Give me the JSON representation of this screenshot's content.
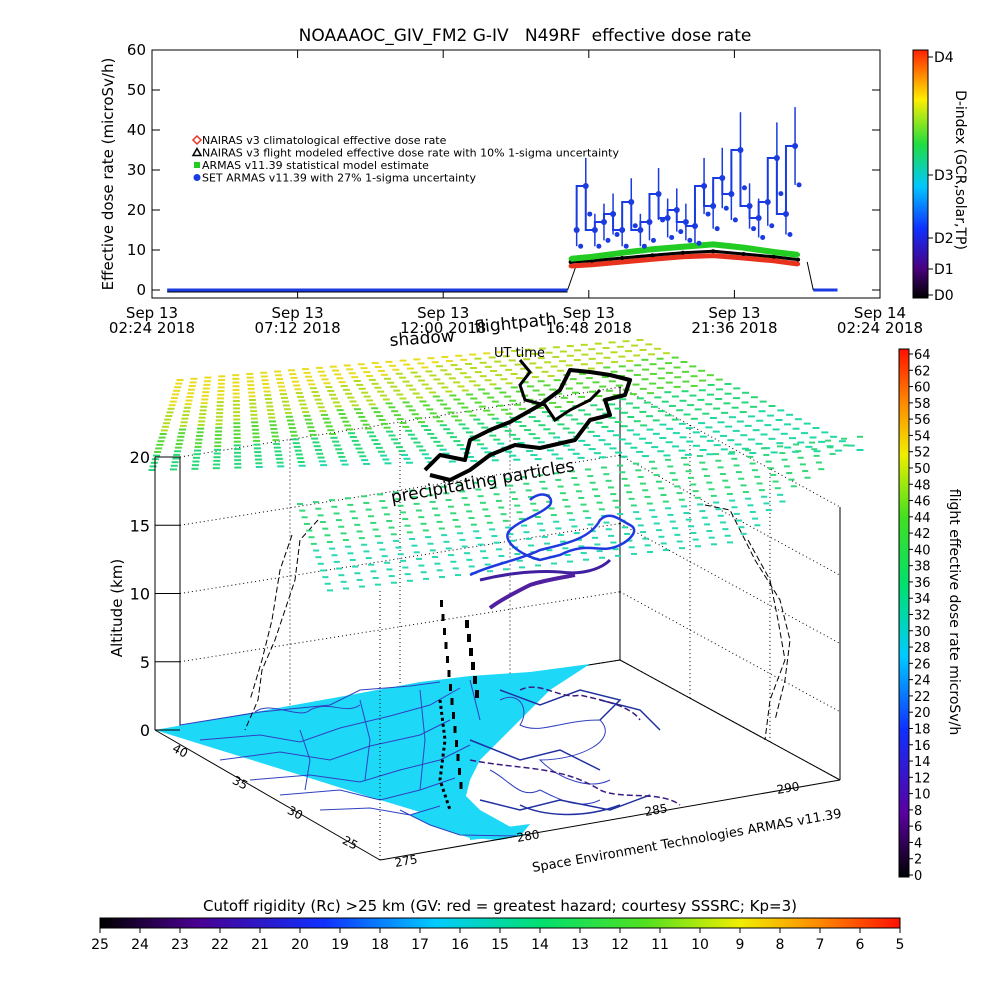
{
  "title": "NOAAAOC_GIV_FM2 G-IV   N49RF  effective dose rate",
  "chart_data": [
    {
      "type": "scatter",
      "name": "time-series",
      "ylabel": "Effective dose rate  (microSv/h)",
      "ylim": [
        0,
        60
      ],
      "y_ticks": [
        "0",
        "10",
        "20",
        "30",
        "40",
        "50",
        "60"
      ],
      "x_ticks": [
        {
          "l1": "Sep 13",
          "l2": "02:24 2018"
        },
        {
          "l1": "Sep 13",
          "l2": "07:12 2018"
        },
        {
          "l1": "Sep 13",
          "l2": "12:00 2018"
        },
        {
          "l1": "Sep 13",
          "l2": "16:48 2018"
        },
        {
          "l1": "Sep 13",
          "l2": "21:36 2018"
        },
        {
          "l1": "Sep 14",
          "l2": "02:24 2018"
        }
      ],
      "x_range_hours": [
        0,
        24
      ],
      "legend": [
        {
          "label": "NAIRAS v3 climatological effective dose rate",
          "color": "#e8321e",
          "marker": "diamond"
        },
        {
          "label": "NAIRAS v3 flight modeled effective dose rate with 10% 1-sigma uncertainty",
          "color": "#000000",
          "marker": "triangle"
        },
        {
          "label": "ARMAS v11.39 statistical model estimate",
          "color": "#22cc22",
          "marker": "star"
        },
        {
          "label": "SET ARMAS v11.39 with 27% 1-sigma uncertainty",
          "color": "#1a3be0",
          "marker": "circle"
        }
      ],
      "flight_hours": [
        13.7,
        21.8
      ],
      "series": [
        {
          "name": "NAIRAS v3 climatological effective dose rate",
          "color": "#e8321e",
          "x": [
            13.8,
            14.5,
            15.5,
            16.5,
            17.5,
            18.5,
            19.5,
            20.5,
            21.3
          ],
          "y": [
            6.0,
            6.3,
            7.0,
            7.7,
            8.3,
            8.6,
            8.0,
            7.3,
            6.5
          ]
        },
        {
          "name": "NAIRAS v3 flight modeled effective dose rate with 10% 1-sigma uncertainty",
          "color": "#000000",
          "x": [
            13.8,
            14.5,
            15.5,
            16.5,
            17.5,
            18.5,
            19.5,
            20.5,
            21.3
          ],
          "y": [
            7.0,
            7.3,
            8.0,
            8.7,
            9.3,
            9.7,
            9.0,
            8.3,
            7.6
          ]
        },
        {
          "name": "ARMAS v11.39 statistical model estimate",
          "color": "#22cc22",
          "x": [
            13.8,
            14.5,
            15.5,
            16.5,
            17.5,
            18.5,
            19.5,
            20.5,
            21.3
          ],
          "y": [
            7.8,
            8.3,
            9.3,
            10.2,
            10.8,
            11.4,
            10.6,
            9.5,
            8.8
          ]
        },
        {
          "name": "SET ARMAS v11.39 with 27% 1-sigma uncertainty",
          "color": "#1a3be0",
          "x": [
            14.0,
            14.3,
            14.6,
            14.9,
            15.2,
            15.5,
            15.8,
            16.1,
            16.4,
            16.7,
            17.0,
            17.3,
            17.6,
            17.9,
            18.2,
            18.5,
            18.8,
            19.1,
            19.4,
            19.7,
            20.0,
            20.3,
            20.6,
            20.9,
            21.2
          ],
          "y": [
            15,
            26,
            15,
            17,
            19,
            15,
            22,
            15,
            17,
            24,
            18,
            20,
            17,
            16,
            26,
            21,
            28,
            24,
            35,
            21,
            18,
            22,
            33,
            19,
            36
          ]
        }
      ],
      "dindex_colorbar": {
        "label": "D-index (GCR,solar,TP)",
        "ticks": [
          "D0",
          "D1",
          "D2",
          "D3",
          "D4"
        ]
      }
    },
    {
      "type": "3d-scatter",
      "name": "3d-flightpath",
      "zlabel": "Altitude (km)",
      "z_ticks": [
        "0",
        "5",
        "10",
        "15",
        "20"
      ],
      "lat_ticks": [
        "40",
        "35",
        "30",
        "25"
      ],
      "lon_ticks": [
        "275",
        "280",
        "285",
        "290"
      ],
      "labels": {
        "flightpath": "flightpath",
        "shadow": "shadow",
        "ut_time": "UT time",
        "precipitating": "precipitating particles",
        "credit": "Space Environment Technologies ARMAS v11.39"
      },
      "dose_colorbar": {
        "label": "flight effective dose rate microSv/h",
        "ticks": [
          "0",
          "2",
          "4",
          "6",
          "8",
          "10",
          "12",
          "14",
          "16",
          "18",
          "20",
          "22",
          "24",
          "26",
          "28",
          "30",
          "32",
          "34",
          "36",
          "38",
          "40",
          "42",
          "44",
          "46",
          "48",
          "50",
          "52",
          "54",
          "56",
          "58",
          "60",
          "62",
          "64"
        ]
      }
    }
  ],
  "rc_colorbar": {
    "title": "Cutoff rigidity (Rc) >25 km (GV: red = greatest hazard; courtesy SSSRC; Kp=3)",
    "ticks": [
      "25",
      "24",
      "23",
      "22",
      "21",
      "20",
      "19",
      "18",
      "17",
      "16",
      "15",
      "14",
      "13",
      "12",
      "11",
      "10",
      "9",
      "8",
      "7",
      "6",
      "5"
    ]
  }
}
